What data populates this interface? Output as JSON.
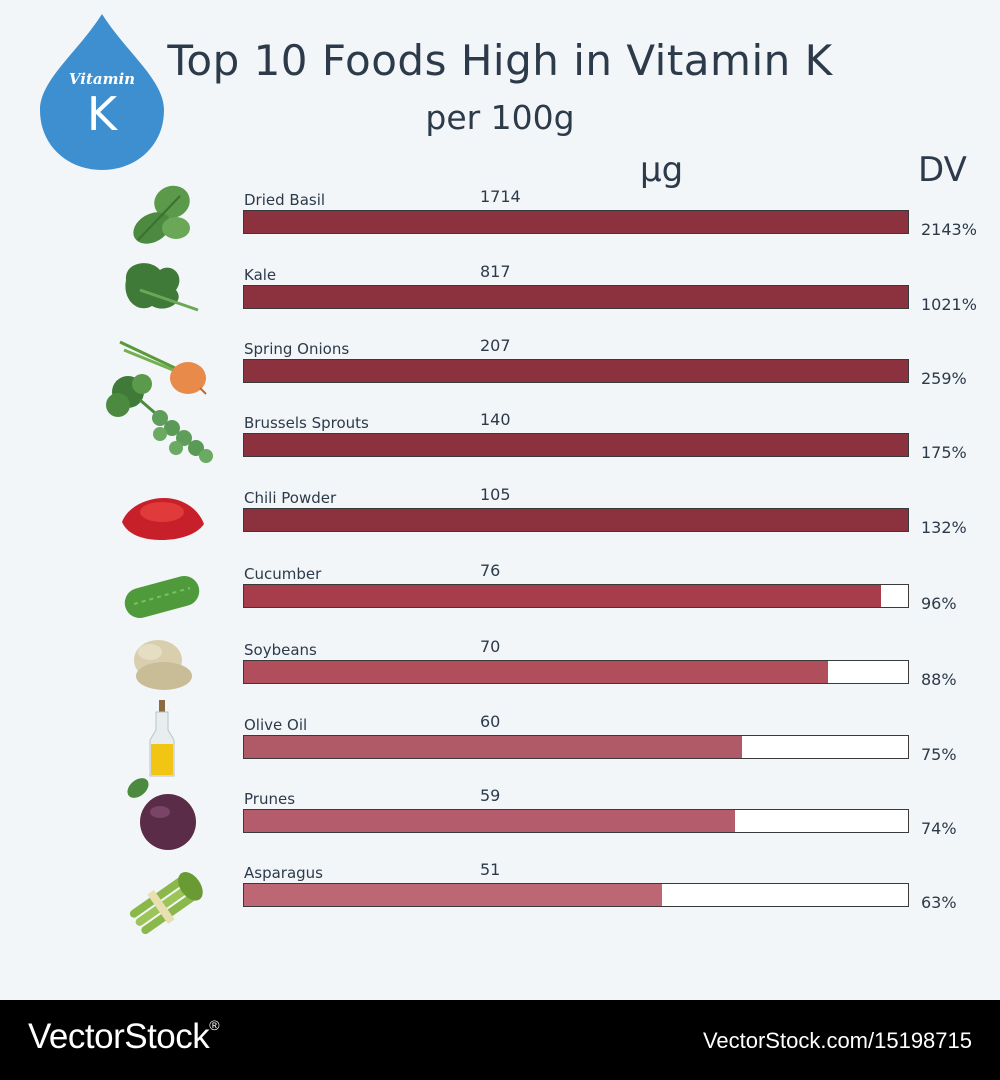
{
  "badge": {
    "line1": "Vitamin",
    "line2": "K",
    "color": "#3d8fcf"
  },
  "title": "Top 10 Foods High in Vitamin K",
  "subtitle": "per 100g",
  "column_headers": {
    "amount": "μg",
    "dv": "DV"
  },
  "chart_data": {
    "type": "bar",
    "orientation": "horizontal",
    "title": "Top 10 Foods High in Vitamin K",
    "subtitle": "per 100g",
    "categories": [
      "Dried Basil",
      "Kale",
      "Spring Onions",
      "Brussels Sprouts",
      "Chili Powder",
      "Cucumber",
      "Soybeans",
      "Olive Oil",
      "Prunes",
      "Asparagus"
    ],
    "values_ug": [
      1714,
      817,
      207,
      140,
      105,
      76,
      70,
      60,
      59,
      51
    ],
    "dv_percent_labels": [
      "2143%",
      "1021%",
      "259%",
      "175%",
      "132%",
      "96%",
      "88%",
      "75%",
      "74%",
      "63%"
    ],
    "dv_percent": [
      2143,
      1021,
      259,
      175,
      132,
      96,
      88,
      75,
      74,
      63
    ],
    "bar_max_percent": 100,
    "bar_colors": [
      "#8b323e",
      "#8b323e",
      "#8b323e",
      "#8b323e",
      "#8b323e",
      "#a73d4a",
      "#b04e5b",
      "#b05a68",
      "#b45c6c",
      "#bd6674"
    ],
    "icons": [
      "basil-icon",
      "kale-icon",
      "spring-onion-icon",
      "brussels-sprouts-icon",
      "chili-powder-icon",
      "cucumber-icon",
      "soybeans-icon",
      "olive-oil-icon",
      "prune-icon",
      "asparagus-icon"
    ]
  },
  "footer": {
    "brand": "VectorStock",
    "superscript": "®",
    "url": "VectorStock.com/15198715"
  }
}
